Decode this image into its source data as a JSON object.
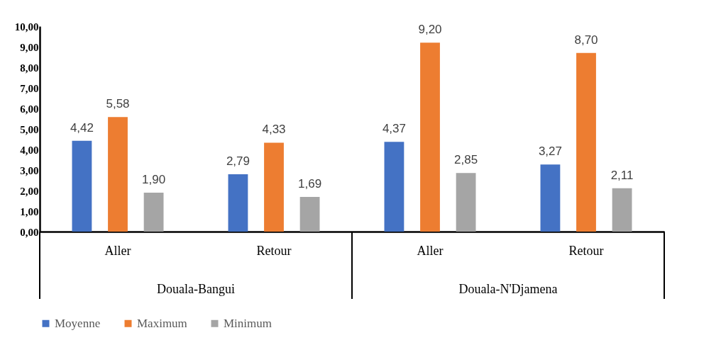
{
  "chart_data": {
    "type": "bar",
    "categories": [
      "Aller",
      "Retour",
      "Aller",
      "Retour"
    ],
    "series": [
      {
        "name": "Moyenne",
        "color": "#4472c4",
        "values": [
          4.42,
          2.79,
          4.37,
          3.27
        ],
        "value_labels": [
          "4,42",
          "2,79",
          "4,37",
          "3,27"
        ]
      },
      {
        "name": "Maximum",
        "color": "#ed7d31",
        "values": [
          5.58,
          4.33,
          9.2,
          8.7
        ],
        "value_labels": [
          "5,58",
          "4,33",
          "9,20",
          "8,70"
        ]
      },
      {
        "name": "Minimum",
        "color": "#a5a5a5",
        "values": [
          1.9,
          1.69,
          2.85,
          2.11
        ],
        "value_labels": [
          "1,90",
          "1,69",
          "2,85",
          "2,11"
        ]
      }
    ],
    "ylim": [
      0,
      10
    ],
    "yticks": [
      {
        "value": 0,
        "label": "0,00"
      },
      {
        "value": 1,
        "label": "1,00"
      },
      {
        "value": 2,
        "label": "2,00"
      },
      {
        "value": 3,
        "label": "3,00"
      },
      {
        "value": 4,
        "label": "4,00"
      },
      {
        "value": 5,
        "label": "5,00"
      },
      {
        "value": 6,
        "label": "6,00"
      },
      {
        "value": 7,
        "label": "7,00"
      },
      {
        "value": 8,
        "label": "8,00"
      },
      {
        "value": 9,
        "label": "9,00"
      },
      {
        "value": 10,
        "label": "10,00"
      }
    ],
    "annotations": [
      "Douala-Bangui",
      "Douala-N'Djamena"
    ],
    "legend": "bottom",
    "grid": false
  }
}
